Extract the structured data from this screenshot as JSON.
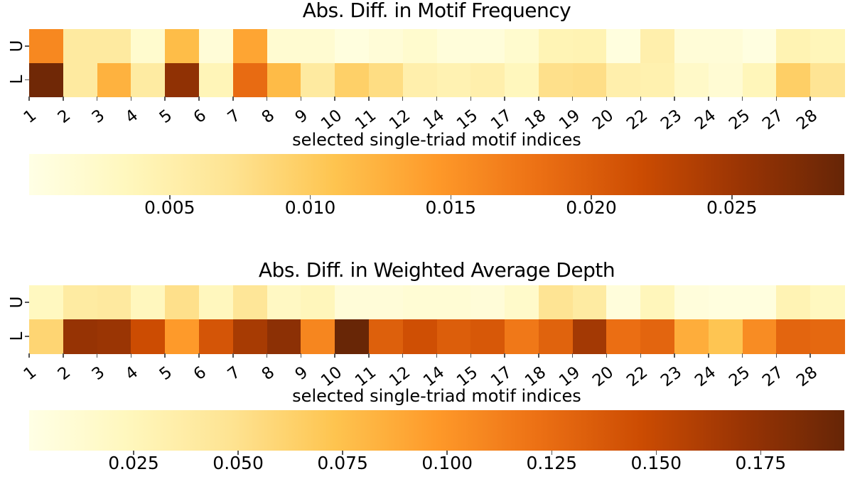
{
  "chart_data": {
    "type": "heatmap",
    "description": "Two 2-row heatmaps comparing absolute differences, xkcd-style matplotlib figure",
    "colormap_name": "YlOrBr",
    "colormap_rgb": [
      [
        255,
        255,
        229
      ],
      [
        255,
        247,
        188
      ],
      [
        254,
        227,
        145
      ],
      [
        254,
        196,
        79
      ],
      [
        254,
        153,
        41
      ],
      [
        236,
        112,
        20
      ],
      [
        204,
        76,
        2
      ],
      [
        153,
        52,
        4
      ],
      [
        102,
        37,
        6
      ]
    ],
    "row_labels": [
      "U",
      "L"
    ],
    "columns": [
      "1",
      "2",
      "3",
      "4",
      "5",
      "6",
      "7",
      "8",
      "9",
      "10",
      "11",
      "12",
      "14",
      "15",
      "17",
      "18",
      "19",
      "20",
      "22",
      "23",
      "24",
      "25",
      "27",
      "28"
    ],
    "xlabel": "selected single-triad motif indices",
    "panels": [
      {
        "title": "Abs. Diff. in Motif Frequency",
        "vmin": 0.0,
        "vmax": 0.029,
        "colorbar_tick_values": [
          0.005,
          0.01,
          0.015,
          0.02,
          0.025
        ],
        "colorbar_tick_labels": [
          "0.005",
          "0.010",
          "0.015",
          "0.020",
          "0.025"
        ],
        "series": [
          {
            "name": "U",
            "values": [
              0.016,
              0.006,
              0.006,
              0.002,
              0.0115,
              0.0012,
              0.0135,
              0.0018,
              0.0018,
              0.0006,
              0.0012,
              0.002,
              0.001,
              0.001,
              0.002,
              0.0042,
              0.0044,
              0.0006,
              0.005,
              0.0012,
              0.0012,
              0.0004,
              0.0044,
              0.0038
            ]
          },
          {
            "name": "L",
            "values": [
              0.0283,
              0.006,
              0.0124,
              0.0058,
              0.026,
              0.004,
              0.0186,
              0.0116,
              0.006,
              0.0095,
              0.008,
              0.005,
              0.0045,
              0.005,
              0.0035,
              0.0076,
              0.0078,
              0.005,
              0.0047,
              0.0026,
              0.0016,
              0.0038,
              0.0096,
              0.007
            ]
          }
        ]
      },
      {
        "title": "Abs. Diff. in Weighted Average Depth",
        "vmin": 0.0,
        "vmax": 0.195,
        "colorbar_tick_values": [
          0.025,
          0.05,
          0.075,
          0.1,
          0.125,
          0.15,
          0.175
        ],
        "colorbar_tick_labels": [
          "0.025",
          "0.050",
          "0.075",
          "0.100",
          "0.125",
          "0.150",
          "0.175"
        ],
        "series": [
          {
            "name": "U",
            "values": [
              0.022,
              0.039,
              0.041,
              0.023,
              0.051,
              0.023,
              0.045,
              0.02,
              0.025,
              0.008,
              0.008,
              0.01,
              0.01,
              0.008,
              0.016,
              0.047,
              0.039,
              0.006,
              0.025,
              0.006,
              0.004,
              0.004,
              0.029,
              0.022
            ]
          },
          {
            "name": "L",
            "values": [
              0.06,
              0.172,
              0.17,
              0.146,
              0.097,
              0.14,
              0.164,
              0.177,
              0.109,
              0.194,
              0.133,
              0.144,
              0.134,
              0.138,
              0.117,
              0.131,
              0.166,
              0.123,
              0.129,
              0.086,
              0.072,
              0.105,
              0.129,
              0.127
            ]
          }
        ]
      }
    ]
  }
}
